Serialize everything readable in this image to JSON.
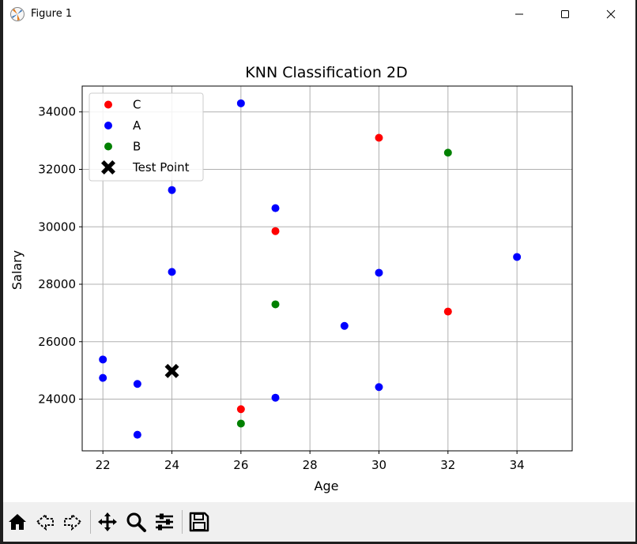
{
  "window": {
    "title": "Figure 1",
    "controls": [
      "minimize",
      "maximize",
      "close"
    ]
  },
  "toolbar": {
    "icons": [
      "home-icon",
      "back-icon",
      "forward-icon",
      "pan-icon",
      "zoom-icon",
      "configure-subplots-icon",
      "save-icon"
    ]
  },
  "chart_data": {
    "type": "scatter",
    "title": "KNN Classification 2D",
    "xlabel": "Age",
    "ylabel": "Salary",
    "xlim": [
      21.4,
      35.6
    ],
    "ylim": [
      22200,
      34900
    ],
    "xticks": [
      22,
      24,
      26,
      28,
      30,
      32,
      34
    ],
    "yticks": [
      24000,
      26000,
      28000,
      30000,
      32000,
      34000
    ],
    "grid": true,
    "legend_position": "top-left",
    "series": [
      {
        "name": "C",
        "color": "#ff0000",
        "marker": "circle",
        "points": [
          [
            30,
            33100
          ],
          [
            27,
            29850
          ],
          [
            32,
            27050
          ],
          [
            26,
            23650
          ]
        ]
      },
      {
        "name": "A",
        "color": "#0000ff",
        "marker": "circle",
        "points": [
          [
            26,
            34300
          ],
          [
            24,
            31280
          ],
          [
            27,
            30650
          ],
          [
            24,
            28430
          ],
          [
            30,
            28400
          ],
          [
            34,
            28950
          ],
          [
            29,
            26550
          ],
          [
            22,
            25380
          ],
          [
            22,
            24740
          ],
          [
            23,
            24530
          ],
          [
            30,
            24420
          ],
          [
            27,
            24050
          ],
          [
            23,
            22760
          ]
        ]
      },
      {
        "name": "B",
        "color": "#008000",
        "marker": "circle",
        "points": [
          [
            32,
            32580
          ],
          [
            27,
            27300
          ],
          [
            26,
            23150
          ]
        ]
      },
      {
        "name": "Test Point",
        "color": "#000000",
        "marker": "X",
        "points": [
          [
            24,
            24980
          ]
        ]
      }
    ]
  }
}
